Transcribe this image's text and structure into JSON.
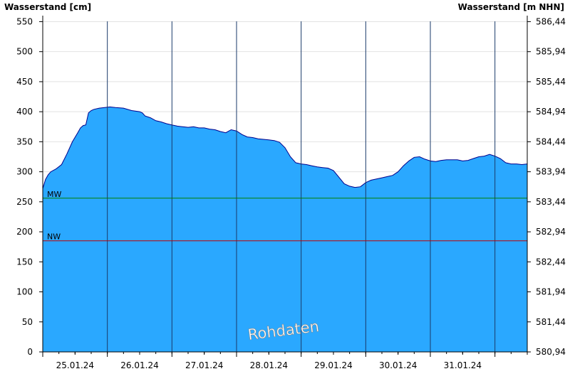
{
  "chart_data": {
    "type": "area",
    "ylabel_left": "Wasserstand [cm]",
    "ylabel_right": "Wasserstand [m NHN]",
    "ylim": [
      0,
      560
    ],
    "yticks_left": [
      "0",
      "50",
      "100",
      "150",
      "200",
      "250",
      "300",
      "350",
      "400",
      "450",
      "500",
      "550"
    ],
    "yticks_right": [
      "580,94",
      "581,44",
      "581,94",
      "582,44",
      "582,94",
      "583,44",
      "583,94",
      "584,44",
      "584,94",
      "585,44",
      "585,94",
      "586,44"
    ],
    "x_start": "2024-01-24T12:00",
    "x_end": "2024-02-01T00:00",
    "x_labels": [
      "25.01.24",
      "26.01.24",
      "27.01.24",
      "28.01.24",
      "29.01.24",
      "30.01.24",
      "31.01.24"
    ],
    "series": [
      {
        "values": [
          [
            "2024-01-24T12:00",
            272
          ],
          [
            "2024-01-24T13:00",
            287
          ],
          [
            "2024-01-24T14:00",
            295
          ],
          [
            "2024-01-24T15:00",
            300
          ],
          [
            "2024-01-24T17:00",
            305
          ],
          [
            "2024-01-24T19:00",
            312
          ],
          [
            "2024-01-24T21:00",
            330
          ],
          [
            "2024-01-24T23:00",
            350
          ],
          [
            "2024-01-25T01:00",
            365
          ],
          [
            "2024-01-25T02:00",
            373
          ],
          [
            "2024-01-25T03:00",
            377
          ],
          [
            "2024-01-25T04:00",
            378
          ],
          [
            "2024-01-25T05:00",
            398
          ],
          [
            "2024-01-25T06:00",
            402
          ],
          [
            "2024-01-25T07:00",
            404
          ],
          [
            "2024-01-25T09:00",
            406
          ],
          [
            "2024-01-25T11:00",
            407
          ],
          [
            "2024-01-25T13:00",
            408
          ],
          [
            "2024-01-25T15:00",
            407
          ],
          [
            "2024-01-25T18:00",
            406
          ],
          [
            "2024-01-25T21:00",
            402
          ],
          [
            "2024-01-26T00:00",
            400
          ],
          [
            "2024-01-26T01:00",
            398
          ],
          [
            "2024-01-26T02:00",
            393
          ],
          [
            "2024-01-26T04:00",
            390
          ],
          [
            "2024-01-26T06:00",
            385
          ],
          [
            "2024-01-26T08:00",
            383
          ],
          [
            "2024-01-26T10:00",
            380
          ],
          [
            "2024-01-26T12:00",
            378
          ],
          [
            "2024-01-26T14:00",
            376
          ],
          [
            "2024-01-26T16:00",
            375
          ],
          [
            "2024-01-26T18:00",
            374
          ],
          [
            "2024-01-26T20:00",
            375
          ],
          [
            "2024-01-26T22:00",
            373
          ],
          [
            "2024-01-27T00:00",
            373
          ],
          [
            "2024-01-27T02:00",
            371
          ],
          [
            "2024-01-27T04:00",
            370
          ],
          [
            "2024-01-27T06:00",
            367
          ],
          [
            "2024-01-27T08:00",
            365
          ],
          [
            "2024-01-27T10:00",
            370
          ],
          [
            "2024-01-27T12:00",
            368
          ],
          [
            "2024-01-27T14:00",
            362
          ],
          [
            "2024-01-27T16:00",
            358
          ],
          [
            "2024-01-27T18:00",
            357
          ],
          [
            "2024-01-27T20:00",
            355
          ],
          [
            "2024-01-27T22:00",
            354
          ],
          [
            "2024-01-28T00:00",
            353
          ],
          [
            "2024-01-28T02:00",
            352
          ],
          [
            "2024-01-28T04:00",
            349
          ],
          [
            "2024-01-28T06:00",
            340
          ],
          [
            "2024-01-28T08:00",
            325
          ],
          [
            "2024-01-28T10:00",
            315
          ],
          [
            "2024-01-28T12:00",
            313
          ],
          [
            "2024-01-28T14:00",
            312
          ],
          [
            "2024-01-28T16:00",
            310
          ],
          [
            "2024-01-28T18:00",
            308
          ],
          [
            "2024-01-28T20:00",
            307
          ],
          [
            "2024-01-28T22:00",
            306
          ],
          [
            "2024-01-29T00:00",
            302
          ],
          [
            "2024-01-29T02:00",
            291
          ],
          [
            "2024-01-29T04:00",
            280
          ],
          [
            "2024-01-29T06:00",
            276
          ],
          [
            "2024-01-29T08:00",
            274
          ],
          [
            "2024-01-29T10:00",
            275
          ],
          [
            "2024-01-29T12:00",
            282
          ],
          [
            "2024-01-29T14:00",
            286
          ],
          [
            "2024-01-29T16:00",
            288
          ],
          [
            "2024-01-29T18:00",
            290
          ],
          [
            "2024-01-29T20:00",
            292
          ],
          [
            "2024-01-29T22:00",
            294
          ],
          [
            "2024-01-30T00:00",
            300
          ],
          [
            "2024-01-30T02:00",
            310
          ],
          [
            "2024-01-30T04:00",
            318
          ],
          [
            "2024-01-30T06:00",
            324
          ],
          [
            "2024-01-30T08:00",
            325
          ],
          [
            "2024-01-30T10:00",
            321
          ],
          [
            "2024-01-30T12:00",
            318
          ],
          [
            "2024-01-30T14:00",
            317
          ],
          [
            "2024-01-30T16:00",
            319
          ],
          [
            "2024-01-30T18:00",
            320
          ],
          [
            "2024-01-30T20:00",
            320
          ],
          [
            "2024-01-30T22:00",
            320
          ],
          [
            "2024-01-31T00:00",
            318
          ],
          [
            "2024-01-31T02:00",
            319
          ],
          [
            "2024-01-31T04:00",
            322
          ],
          [
            "2024-01-31T06:00",
            325
          ],
          [
            "2024-01-31T08:00",
            326
          ],
          [
            "2024-01-31T10:00",
            329
          ],
          [
            "2024-01-31T12:00",
            326
          ],
          [
            "2024-01-31T14:00",
            322
          ],
          [
            "2024-01-31T16:00",
            315
          ],
          [
            "2024-01-31T18:00",
            313
          ],
          [
            "2024-01-31T20:00",
            313
          ],
          [
            "2024-01-31T22:00",
            312
          ],
          [
            "2024-02-01T00:00",
            313
          ]
        ]
      }
    ],
    "reference_lines": [
      {
        "label": "MW",
        "value": 256,
        "color": "#008000"
      },
      {
        "label": "NW",
        "value": 185,
        "color": "#c00000"
      }
    ],
    "colors": {
      "fill": "#2aa8ff",
      "line": "#00008b",
      "grid": "#000000"
    },
    "watermark": "Rohdaten",
    "grid": true,
    "legend": "none"
  }
}
